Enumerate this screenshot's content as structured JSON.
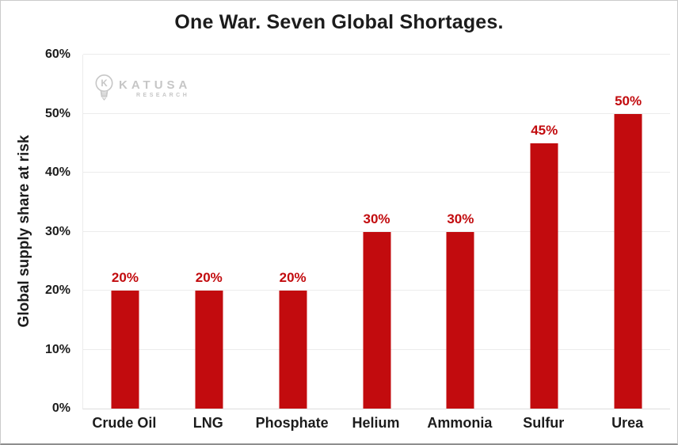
{
  "logo": {
    "name": "KATUSA",
    "subtext": "RESEARCH"
  },
  "chart_data": {
    "type": "bar",
    "title": "One War. Seven Global Shortages.",
    "xlabel": "",
    "ylabel": "Global supply share at risk",
    "categories": [
      "Crude Oil",
      "LNG",
      "Phosphate",
      "Helium",
      "Ammonia",
      "Sulfur",
      "Urea"
    ],
    "values": [
      20,
      20,
      20,
      30,
      30,
      45,
      50
    ],
    "value_labels": [
      "20%",
      "20%",
      "20%",
      "30%",
      "30%",
      "45%",
      "50%"
    ],
    "ylim": [
      0,
      60
    ],
    "ytick_values": [
      0,
      10,
      20,
      30,
      40,
      50,
      60
    ],
    "ytick_labels": [
      "0%",
      "10%",
      "20%",
      "30%",
      "40%",
      "50%",
      "60%"
    ],
    "grid": true,
    "legend": false,
    "colors": {
      "bar": "#c20b0e",
      "value_label": "#c20b0e",
      "grid": "#ececec",
      "axis": "#dedede",
      "text": "#1c1c1c",
      "logo": "#c6c6c6"
    }
  }
}
